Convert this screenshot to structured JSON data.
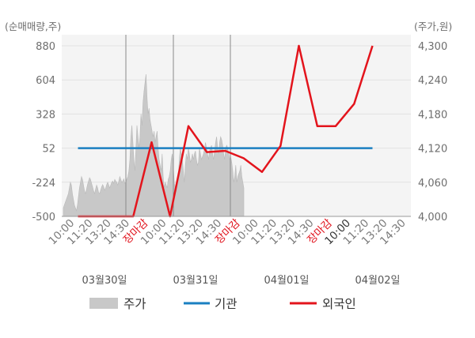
{
  "chart_data": {
    "type": "line",
    "left_axis": {
      "unit_label": "(순매매량,주)",
      "ticks": [
        "880",
        "604",
        "328",
        "52",
        "-224",
        "-500"
      ],
      "range": [
        -500,
        880
      ]
    },
    "right_axis": {
      "unit_label": "(주가,원)",
      "ticks": [
        "4,300",
        "4,240",
        "4,180",
        "4,120",
        "4,060",
        "4,000"
      ],
      "range": [
        4000,
        4300
      ]
    },
    "x_labels": [
      {
        "text": "10:00",
        "style": "normal"
      },
      {
        "text": "11:20",
        "style": "normal"
      },
      {
        "text": "13:20",
        "style": "normal"
      },
      {
        "text": "14:30",
        "style": "normal"
      },
      {
        "text": "장마감",
        "style": "close"
      },
      {
        "text": "10:00",
        "style": "normal"
      },
      {
        "text": "11:20",
        "style": "normal"
      },
      {
        "text": "13:20",
        "style": "normal"
      },
      {
        "text": "14:30",
        "style": "normal"
      },
      {
        "text": "장마감",
        "style": "close"
      },
      {
        "text": "10:00",
        "style": "normal"
      },
      {
        "text": "11:20",
        "style": "normal"
      },
      {
        "text": "13:20",
        "style": "normal"
      },
      {
        "text": "14:30",
        "style": "normal"
      },
      {
        "text": "장마감",
        "style": "close"
      },
      {
        "text": "10:00",
        "style": "dark"
      },
      {
        "text": "11:20",
        "style": "normal"
      },
      {
        "text": "13:20",
        "style": "normal"
      },
      {
        "text": "14:30",
        "style": "normal"
      }
    ],
    "day_labels": [
      "03월30일",
      "03월31일",
      "04월01일",
      "04월02일"
    ],
    "legend": [
      "주가",
      "기관",
      "외국인"
    ],
    "colors": {
      "price_fill": "#c8c8c8",
      "institution": "#1a7fc1",
      "foreign": "#e3141c",
      "grid": "#e2e2e2",
      "plot_bg": "#f4f4f4",
      "baseline": "#999999",
      "divider": "#8a8a8a"
    },
    "institution": [
      52,
      52
    ],
    "foreign": [
      -500,
      -500,
      -500,
      -500,
      100,
      -500,
      230,
      20,
      30,
      -30,
      -140,
      70,
      880,
      230,
      230,
      410,
      880
    ],
    "price": [
      4015,
      4020,
      4025,
      4030,
      4035,
      4040,
      4050,
      4060,
      4055,
      4040,
      4030,
      4020,
      4015,
      4010,
      4020,
      4035,
      4050,
      4060,
      4070,
      4065,
      4055,
      4045,
      4040,
      4048,
      4056,
      4062,
      4068,
      4065,
      4058,
      4052,
      4045,
      4040,
      4048,
      4055,
      4050,
      4042,
      4040,
      4046,
      4052,
      4056,
      4052,
      4046,
      4050,
      4056,
      4060,
      4055,
      4050,
      4055,
      4060,
      4062,
      4058,
      4065,
      4062,
      4060,
      4055,
      4062,
      4070,
      4065,
      4060,
      4062,
      4066,
      4058,
      4060,
      4066,
      4070,
      4080,
      4100,
      4140,
      4160,
      4130,
      4100,
      4080,
      4120,
      4160,
      4140,
      4120,
      4140,
      4180,
      4160,
      4200,
      4220,
      4235,
      4250,
      4210,
      4180,
      4190,
      4170,
      4160,
      4150,
      4140,
      4150,
      4130,
      4140,
      4150,
      4120,
      4100,
      4090,
      4080,
      4110,
      4070,
      4050,
      4060,
      4055,
      4050,
      4065,
      4070,
      4080,
      4100,
      4110,
      4090,
      4060,
      4050,
      4045,
      4055,
      4070,
      4100,
      4120,
      4110,
      4100,
      4080,
      4060,
      4090,
      4110,
      4100,
      4120,
      4110,
      4095,
      4100,
      4110,
      4100,
      4110,
      4115,
      4100,
      4090,
      4095,
      4120,
      4110,
      4100,
      4105,
      4110,
      4120,
      4130,
      4120,
      4110,
      4100,
      4115,
      4120,
      4125,
      4110,
      4100,
      4115,
      4130,
      4140,
      4120,
      4110,
      4130,
      4140,
      4135,
      4125,
      4110,
      4100,
      4120,
      4125,
      4120,
      4110,
      4100,
      4105,
      4095,
      4080,
      4060,
      4070,
      4090,
      4060,
      4070,
      4075,
      4080,
      4090,
      4070,
      4060,
      4050
    ]
  }
}
